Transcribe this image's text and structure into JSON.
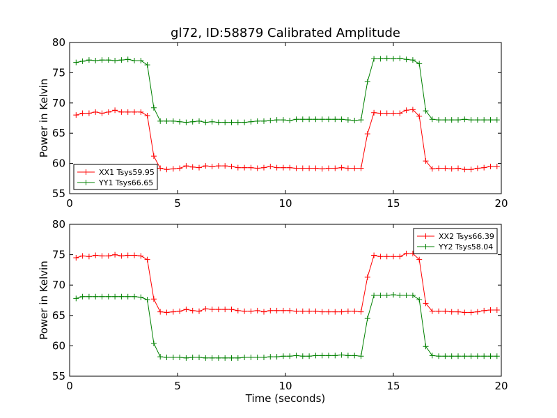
{
  "title": "gl72, ID:58879 Calibrated Amplitude",
  "chart_data": [
    {
      "type": "line",
      "ylabel": "Power in Kelvin",
      "xlabel": "",
      "xlim": [
        0,
        20
      ],
      "ylim": [
        55,
        80
      ],
      "xticks": [
        0,
        5,
        10,
        15,
        20
      ],
      "yticks": [
        55,
        60,
        65,
        70,
        75,
        80
      ],
      "legend_position": "lower-left",
      "x": [
        0.3,
        0.6,
        0.9,
        1.2,
        1.5,
        1.8,
        2.1,
        2.4,
        2.7,
        3.0,
        3.3,
        3.6,
        3.9,
        4.2,
        4.5,
        4.8,
        5.1,
        5.4,
        5.7,
        6.0,
        6.3,
        6.6,
        6.9,
        7.2,
        7.5,
        7.8,
        8.1,
        8.4,
        8.7,
        9.0,
        9.3,
        9.6,
        9.9,
        10.2,
        10.5,
        10.8,
        11.1,
        11.4,
        11.7,
        12.0,
        12.3,
        12.6,
        12.9,
        13.2,
        13.5,
        13.8,
        14.1,
        14.4,
        14.7,
        15.0,
        15.3,
        15.6,
        15.9,
        16.2,
        16.5,
        16.8,
        17.1,
        17.4,
        17.7,
        18.0,
        18.3,
        18.6,
        18.9,
        19.2,
        19.5,
        19.8
      ],
      "series": [
        {
          "name": "XX1 Tsys59.95",
          "color": "#ff0000",
          "values": [
            68.0,
            68.3,
            68.3,
            68.5,
            68.3,
            68.5,
            68.8,
            68.5,
            68.5,
            68.5,
            68.5,
            67.9,
            61.2,
            59.2,
            59.0,
            59.1,
            59.2,
            59.6,
            59.4,
            59.3,
            59.6,
            59.5,
            59.6,
            59.6,
            59.5,
            59.3,
            59.3,
            59.3,
            59.2,
            59.3,
            59.5,
            59.3,
            59.3,
            59.3,
            59.2,
            59.2,
            59.2,
            59.2,
            59.1,
            59.2,
            59.2,
            59.3,
            59.2,
            59.2,
            59.2,
            64.9,
            68.4,
            68.3,
            68.3,
            68.3,
            68.3,
            68.8,
            68.9,
            67.8,
            60.4,
            59.1,
            59.2,
            59.2,
            59.1,
            59.2,
            59.0,
            59.0,
            59.2,
            59.3,
            59.5,
            59.5
          ]
        },
        {
          "name": "YY1 Tsys66.65",
          "color": "#008000",
          "values": [
            76.7,
            76.9,
            77.1,
            77.0,
            77.1,
            77.1,
            77.0,
            77.1,
            77.2,
            77.0,
            77.0,
            76.3,
            69.2,
            67.0,
            67.0,
            67.0,
            66.9,
            66.8,
            66.9,
            67.0,
            66.8,
            66.9,
            66.8,
            66.8,
            66.8,
            66.8,
            66.8,
            66.9,
            67.0,
            67.0,
            67.1,
            67.2,
            67.2,
            67.1,
            67.3,
            67.3,
            67.3,
            67.3,
            67.3,
            67.3,
            67.3,
            67.3,
            67.2,
            67.1,
            67.2,
            73.5,
            77.3,
            77.3,
            77.4,
            77.3,
            77.4,
            77.2,
            77.1,
            76.5,
            68.7,
            67.3,
            67.2,
            67.2,
            67.2,
            67.2,
            67.3,
            67.2,
            67.2,
            67.2,
            67.2,
            67.2
          ]
        }
      ]
    },
    {
      "type": "line",
      "ylabel": "Power in Kelvin",
      "xlabel": "Time (seconds)",
      "xlim": [
        0,
        20
      ],
      "ylim": [
        55,
        80
      ],
      "xticks": [
        0,
        5,
        10,
        15,
        20
      ],
      "yticks": [
        55,
        60,
        65,
        70,
        75,
        80
      ],
      "legend_position": "top-right",
      "x": [
        0.3,
        0.6,
        0.9,
        1.2,
        1.5,
        1.8,
        2.1,
        2.4,
        2.7,
        3.0,
        3.3,
        3.6,
        3.9,
        4.2,
        4.5,
        4.8,
        5.1,
        5.4,
        5.7,
        6.0,
        6.3,
        6.6,
        6.9,
        7.2,
        7.5,
        7.8,
        8.1,
        8.4,
        8.7,
        9.0,
        9.3,
        9.6,
        9.9,
        10.2,
        10.5,
        10.8,
        11.1,
        11.4,
        11.7,
        12.0,
        12.3,
        12.6,
        12.9,
        13.2,
        13.5,
        13.8,
        14.1,
        14.4,
        14.7,
        15.0,
        15.3,
        15.6,
        15.9,
        16.2,
        16.5,
        16.8,
        17.1,
        17.4,
        17.7,
        18.0,
        18.3,
        18.6,
        18.9,
        19.2,
        19.5,
        19.8
      ],
      "series": [
        {
          "name": "XX2 Tsys66.39",
          "color": "#ff0000",
          "values": [
            74.5,
            74.8,
            74.7,
            74.9,
            74.8,
            74.8,
            75.0,
            74.8,
            74.9,
            74.9,
            74.8,
            74.2,
            67.7,
            65.6,
            65.5,
            65.6,
            65.7,
            66.0,
            65.8,
            65.7,
            66.1,
            66.0,
            66.0,
            66.0,
            66.0,
            65.8,
            65.7,
            65.7,
            65.8,
            65.6,
            65.8,
            65.8,
            65.8,
            65.8,
            65.7,
            65.7,
            65.7,
            65.7,
            65.6,
            65.6,
            65.6,
            65.6,
            65.7,
            65.7,
            65.6,
            71.3,
            74.9,
            74.7,
            74.7,
            74.7,
            74.7,
            75.2,
            75.2,
            74.2,
            67.0,
            65.7,
            65.7,
            65.7,
            65.6,
            65.6,
            65.5,
            65.5,
            65.6,
            65.8,
            65.9,
            65.9
          ]
        },
        {
          "name": "YY2 Tsys58.04",
          "color": "#008000",
          "values": [
            67.8,
            68.1,
            68.1,
            68.1,
            68.1,
            68.1,
            68.1,
            68.1,
            68.1,
            68.1,
            68.0,
            67.6,
            60.4,
            58.2,
            58.1,
            58.1,
            58.1,
            58.0,
            58.1,
            58.1,
            58.0,
            58.0,
            58.0,
            58.0,
            58.0,
            58.0,
            58.1,
            58.1,
            58.1,
            58.1,
            58.2,
            58.2,
            58.3,
            58.3,
            58.4,
            58.3,
            58.3,
            58.4,
            58.4,
            58.4,
            58.4,
            58.5,
            58.4,
            58.4,
            58.3,
            64.5,
            68.3,
            68.3,
            68.3,
            68.4,
            68.3,
            68.3,
            68.3,
            67.6,
            59.9,
            58.4,
            58.3,
            58.3,
            58.3,
            58.3,
            58.3,
            58.3,
            58.3,
            58.3,
            58.3,
            58.3
          ]
        }
      ]
    }
  ]
}
